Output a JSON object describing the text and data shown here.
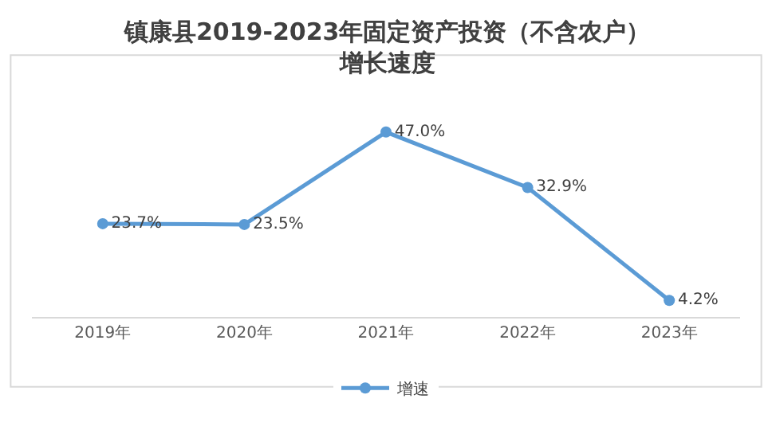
{
  "chart_data": {
    "type": "line",
    "title": "镇康县2019-2023年固定资产投资（不含农户）增长速度",
    "categories": [
      "2019年",
      "2020年",
      "2021年",
      "2022年",
      "2023年"
    ],
    "series": [
      {
        "name": "增速",
        "color": "#5b9bd5",
        "values": [
          23.7,
          23.5,
          47.0,
          32.9,
          4.2
        ],
        "value_labels": [
          "23.7%",
          "23.5%",
          "47.0%",
          "32.9%",
          "4.2%"
        ]
      }
    ],
    "marker": "circle",
    "line_style": "solid",
    "legend": "bottom",
    "grid": false,
    "tick_labels": "x"
  }
}
